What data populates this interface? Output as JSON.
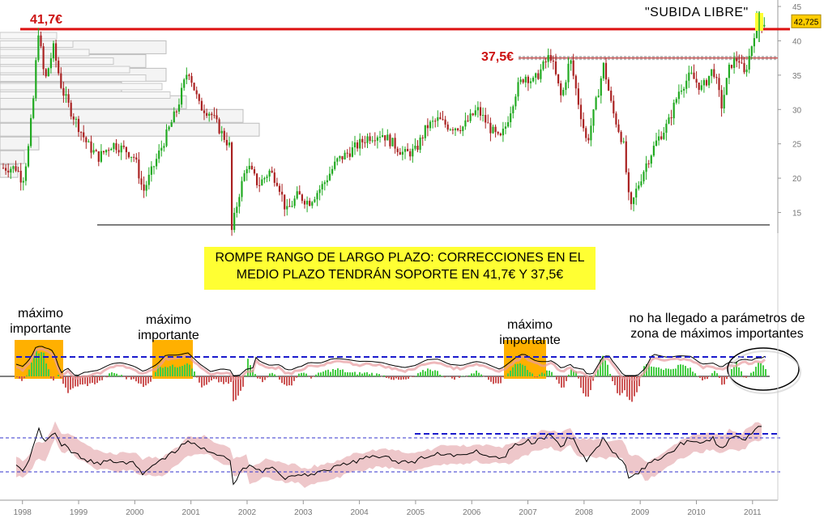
{
  "chart_data": {
    "type": "candlestick",
    "price_axis": {
      "min": 12,
      "max": 45,
      "ticks": [
        15,
        20,
        25,
        30,
        35,
        40,
        45
      ]
    },
    "x_axis": {
      "tick_labels": [
        "1998",
        "1999",
        "2000",
        "2001",
        "2002",
        "2003",
        "2004",
        "2005",
        "2006",
        "2007",
        "2008",
        "2009",
        "2010",
        "2011"
      ]
    },
    "last_price": "42,725",
    "price_path": [
      [
        1997.9,
        21.5
      ],
      [
        1998.0,
        19.5
      ],
      [
        1998.1,
        24.0
      ],
      [
        1998.2,
        32.0
      ],
      [
        1998.28,
        41.7
      ],
      [
        1998.4,
        34.0
      ],
      [
        1998.55,
        39.0
      ],
      [
        1998.7,
        33.0
      ],
      [
        1998.85,
        30.0
      ],
      [
        1999.0,
        27.5
      ],
      [
        1999.15,
        25.0
      ],
      [
        1999.35,
        23.0
      ],
      [
        1999.6,
        25.0
      ],
      [
        1999.85,
        24.0
      ],
      [
        2000.0,
        23.0
      ],
      [
        2000.15,
        18.0
      ],
      [
        2000.35,
        22.0
      ],
      [
        2000.55,
        26.0
      ],
      [
        2000.75,
        30.0
      ],
      [
        2000.95,
        36.0
      ],
      [
        2001.15,
        30.5
      ],
      [
        2001.35,
        29.5
      ],
      [
        2001.55,
        26.5
      ],
      [
        2001.7,
        24.5
      ],
      [
        2001.72,
        12.0
      ],
      [
        2001.85,
        17.5
      ],
      [
        2002.0,
        22.0
      ],
      [
        2002.2,
        19.0
      ],
      [
        2002.4,
        21.0
      ],
      [
        2002.55,
        19.5
      ],
      [
        2002.7,
        15.0
      ],
      [
        2002.9,
        17.5
      ],
      [
        2003.1,
        16.5
      ],
      [
        2003.35,
        19.0
      ],
      [
        2003.6,
        22.5
      ],
      [
        2003.85,
        24.0
      ],
      [
        2004.15,
        26.0
      ],
      [
        2004.4,
        26.5
      ],
      [
        2004.6,
        25.0
      ],
      [
        2004.8,
        23.5
      ],
      [
        2005.0,
        24.0
      ],
      [
        2005.2,
        27.5
      ],
      [
        2005.4,
        28.5
      ],
      [
        2005.6,
        27.5
      ],
      [
        2005.85,
        27.5
      ],
      [
        2006.1,
        30.0
      ],
      [
        2006.35,
        27.0
      ],
      [
        2006.5,
        25.5
      ],
      [
        2006.6,
        27.5
      ],
      [
        2006.8,
        33.0
      ],
      [
        2006.95,
        35.0
      ],
      [
        2007.1,
        34.0
      ],
      [
        2007.25,
        36.0
      ],
      [
        2007.4,
        38.0
      ],
      [
        2007.6,
        31.5
      ],
      [
        2007.75,
        37.5
      ],
      [
        2007.9,
        31.0
      ],
      [
        2008.05,
        25.0
      ],
      [
        2008.2,
        30.5
      ],
      [
        2008.35,
        36.5
      ],
      [
        2008.5,
        30.0
      ],
      [
        2008.7,
        25.0
      ],
      [
        2008.82,
        15.0
      ],
      [
        2008.92,
        18.0
      ],
      [
        2009.1,
        22.0
      ],
      [
        2009.3,
        25.5
      ],
      [
        2009.5,
        28.0
      ],
      [
        2009.7,
        33.0
      ],
      [
        2009.9,
        35.0
      ],
      [
        2010.1,
        33.0
      ],
      [
        2010.3,
        36.0
      ],
      [
        2010.45,
        30.5
      ],
      [
        2010.6,
        36.5
      ],
      [
        2010.75,
        37.5
      ],
      [
        2010.85,
        35.0
      ],
      [
        2010.95,
        38.0
      ],
      [
        2011.0,
        40.0
      ],
      [
        2011.07,
        42.725
      ]
    ],
    "volume_profile_levels": [
      21,
      23,
      25,
      27,
      29,
      31,
      33,
      35,
      37,
      39,
      41
    ],
    "horizontal_lines": [
      {
        "price": 41.7,
        "color": "#dd1111"
      },
      {
        "price": 37.5,
        "color": "#cc5555"
      },
      {
        "price": 13.2,
        "color": "#555555"
      }
    ]
  },
  "annotations": {
    "level_high": "41,7€",
    "level_mid": "37,5€",
    "subida_libre": "\"SUBIDA LIBRE\"",
    "banner_line1": "ROMPE RANGO DE LARGO PLAZO: CORRECCIONES EN EL",
    "banner_line2": "MEDIO PLAZO TENDRÁN SOPORTE EN 41,7€ Y 37,5€",
    "maximo_1_a": "máximo",
    "maximo_1_b": "importante",
    "maximo_2_a": "máximo",
    "maximo_2_b": "importante",
    "maximo_3_a": "máximo",
    "maximo_3_b": "importante",
    "no_llegado_a": "no ha llegado a parámetros de",
    "no_llegado_b": "zona de máximos importantes"
  },
  "colors": {
    "up_candle": "#22aa22",
    "down_candle": "#aa2222",
    "highlight_yellow": "#ffff33",
    "highlight_orange": "#ffb000",
    "band_pink": "#e8b4b8"
  }
}
